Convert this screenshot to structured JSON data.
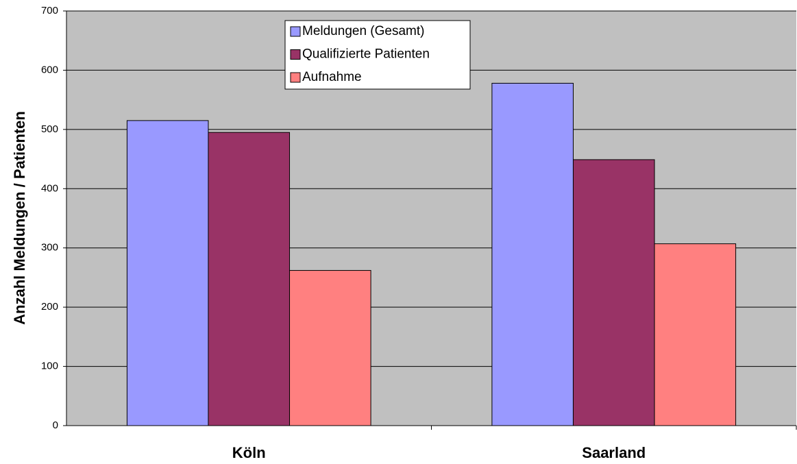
{
  "chart_data": {
    "type": "bar",
    "y_label": "Anzahl Meldungen / Patienten",
    "categories": [
      "Köln",
      "Saarland"
    ],
    "series": [
      {
        "name": "Meldungen (Gesamt)",
        "color": "#9999ff",
        "values": [
          515,
          578
        ]
      },
      {
        "name": "Qualifizierte Patienten",
        "color": "#993366",
        "values": [
          495,
          449
        ]
      },
      {
        "name": "Aufnahme",
        "color": "#ff8080",
        "values": [
          262,
          307
        ]
      }
    ],
    "ylim": [
      0,
      700
    ],
    "yticks": [
      0,
      100,
      200,
      300,
      400,
      500,
      600,
      700
    ],
    "grid": true,
    "plot_background": "#c0c0c0",
    "legend": "top"
  }
}
